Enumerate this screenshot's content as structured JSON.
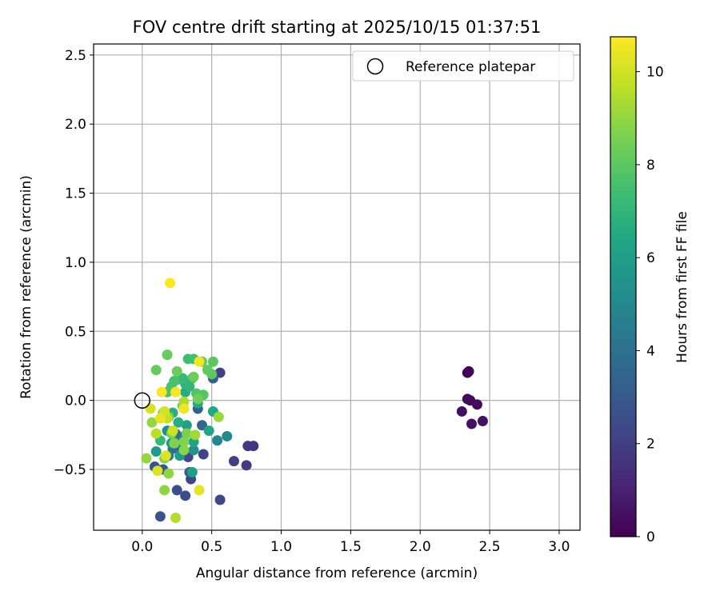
{
  "chart_data": {
    "type": "scatter",
    "title": "FOV centre drift starting at 2025/10/15 01:37:51",
    "xlabel": "Angular distance from reference (arcmin)",
    "ylabel": "Rotation from reference (arcmin)",
    "xlim": [
      -0.35,
      3.15
    ],
    "ylim": [
      -0.94,
      2.58
    ],
    "xticks": [
      0.0,
      0.5,
      1.0,
      1.5,
      2.0,
      2.5,
      3.0
    ],
    "yticks": [
      -0.5,
      0.0,
      0.5,
      1.0,
      1.5,
      2.0,
      2.5
    ],
    "xtick_labels": [
      "0.0",
      "0.5",
      "1.0",
      "1.5",
      "2.0",
      "2.5",
      "3.0"
    ],
    "ytick_labels": [
      "−0.5",
      "0.0",
      "0.5",
      "1.0",
      "1.5",
      "2.0",
      "2.5"
    ],
    "grid": true,
    "legend": {
      "position": "top-right",
      "entries": [
        {
          "label": "Reference platepar",
          "marker": "open-circle"
        }
      ]
    },
    "reference_point": {
      "x": 0.0,
      "y": 0.0
    },
    "colorbar": {
      "label": "Hours from first FF file",
      "colormap": "viridis",
      "range": [
        0,
        10.75
      ],
      "ticks": [
        0,
        2,
        4,
        6,
        8,
        10
      ],
      "tick_labels": [
        "0",
        "2",
        "4",
        "6",
        "8",
        "10"
      ]
    },
    "points": [
      {
        "x": 2.34,
        "y": 0.2,
        "c": 0.0
      },
      {
        "x": 2.35,
        "y": 0.21,
        "c": 0.1
      },
      {
        "x": 2.34,
        "y": 0.01,
        "c": 0.2
      },
      {
        "x": 2.36,
        "y": 0.0,
        "c": 0.3
      },
      {
        "x": 2.41,
        "y": -0.03,
        "c": 0.3
      },
      {
        "x": 2.3,
        "y": -0.08,
        "c": 0.4
      },
      {
        "x": 2.37,
        "y": -0.17,
        "c": 0.5
      },
      {
        "x": 2.45,
        "y": -0.15,
        "c": 0.5
      },
      {
        "x": 0.8,
        "y": -0.33,
        "c": 1.6
      },
      {
        "x": 0.76,
        "y": -0.33,
        "c": 1.7
      },
      {
        "x": 0.75,
        "y": -0.47,
        "c": 1.8
      },
      {
        "x": 0.66,
        "y": -0.44,
        "c": 2.0
      },
      {
        "x": 0.56,
        "y": 0.2,
        "c": 2.0
      },
      {
        "x": 0.44,
        "y": -0.39,
        "c": 2.1
      },
      {
        "x": 0.35,
        "y": -0.57,
        "c": 2.2
      },
      {
        "x": 0.33,
        "y": -0.41,
        "c": 2.3
      },
      {
        "x": 0.56,
        "y": -0.72,
        "c": 2.4
      },
      {
        "x": 0.31,
        "y": -0.69,
        "c": 2.5
      },
      {
        "x": 0.25,
        "y": -0.65,
        "c": 2.6
      },
      {
        "x": 0.13,
        "y": -0.84,
        "c": 2.7
      },
      {
        "x": 0.09,
        "y": -0.48,
        "c": 2.8
      },
      {
        "x": 0.15,
        "y": -0.5,
        "c": 2.9
      },
      {
        "x": 0.28,
        "y": -0.37,
        "c": 3.0
      },
      {
        "x": 0.34,
        "y": -0.52,
        "c": 3.1
      },
      {
        "x": 0.51,
        "y": 0.16,
        "c": 3.3
      },
      {
        "x": 0.4,
        "y": -0.06,
        "c": 3.4
      },
      {
        "x": 0.43,
        "y": -0.18,
        "c": 3.6
      },
      {
        "x": 0.24,
        "y": -0.24,
        "c": 3.7
      },
      {
        "x": 0.22,
        "y": -0.35,
        "c": 3.9
      },
      {
        "x": 0.27,
        "y": -0.3,
        "c": 4.2
      },
      {
        "x": 0.19,
        "y": -0.4,
        "c": 4.4
      },
      {
        "x": 0.3,
        "y": -0.26,
        "c": 4.6
      },
      {
        "x": 0.54,
        "y": -0.29,
        "c": 4.8
      },
      {
        "x": 0.61,
        "y": -0.26,
        "c": 5.0
      },
      {
        "x": 0.18,
        "y": -0.22,
        "c": 5.2
      },
      {
        "x": 0.37,
        "y": -0.36,
        "c": 5.4
      },
      {
        "x": 0.21,
        "y": -0.31,
        "c": 5.6
      },
      {
        "x": 0.1,
        "y": -0.37,
        "c": 5.8
      },
      {
        "x": 0.27,
        "y": -0.4,
        "c": 5.9
      },
      {
        "x": 0.36,
        "y": -0.52,
        "c": 6.0
      },
      {
        "x": 0.32,
        "y": -0.18,
        "c": 6.1
      },
      {
        "x": 0.37,
        "y": -0.3,
        "c": 6.2
      },
      {
        "x": 0.48,
        "y": -0.22,
        "c": 6.3
      },
      {
        "x": 0.51,
        "y": -0.08,
        "c": 6.4
      },
      {
        "x": 0.4,
        "y": -0.02,
        "c": 6.5
      },
      {
        "x": 0.31,
        "y": 0.06,
        "c": 6.6
      },
      {
        "x": 0.26,
        "y": -0.16,
        "c": 6.7
      },
      {
        "x": 0.22,
        "y": -0.09,
        "c": 6.8
      },
      {
        "x": 0.31,
        "y": 0.12,
        "c": 6.9
      },
      {
        "x": 0.34,
        "y": 0.1,
        "c": 7.0
      },
      {
        "x": 0.13,
        "y": -0.29,
        "c": 7.1
      },
      {
        "x": 0.25,
        "y": 0.15,
        "c": 7.1
      },
      {
        "x": 0.29,
        "y": 0.16,
        "c": 7.2
      },
      {
        "x": 0.36,
        "y": 0.16,
        "c": 7.3
      },
      {
        "x": 0.33,
        "y": 0.3,
        "c": 7.4
      },
      {
        "x": 0.37,
        "y": 0.3,
        "c": 7.5
      },
      {
        "x": 0.23,
        "y": 0.14,
        "c": 7.6
      },
      {
        "x": 0.21,
        "y": 0.1,
        "c": 7.6
      },
      {
        "x": 0.18,
        "y": 0.06,
        "c": 7.7
      },
      {
        "x": 0.39,
        "y": 0.05,
        "c": 7.8
      },
      {
        "x": 0.44,
        "y": 0.04,
        "c": 7.9
      },
      {
        "x": 0.5,
        "y": 0.19,
        "c": 8.0
      },
      {
        "x": 0.51,
        "y": 0.28,
        "c": 8.0
      },
      {
        "x": 0.47,
        "y": 0.22,
        "c": 8.1
      },
      {
        "x": 0.43,
        "y": 0.28,
        "c": 8.1
      },
      {
        "x": 0.18,
        "y": 0.33,
        "c": 8.2
      },
      {
        "x": 0.1,
        "y": 0.22,
        "c": 8.2
      },
      {
        "x": 0.25,
        "y": 0.21,
        "c": 8.3
      },
      {
        "x": 0.37,
        "y": 0.17,
        "c": 8.3
      },
      {
        "x": 0.4,
        "y": 0.01,
        "c": 8.4
      },
      {
        "x": 0.29,
        "y": -0.04,
        "c": 8.4
      },
      {
        "x": 0.19,
        "y": -0.12,
        "c": 8.5
      },
      {
        "x": 0.15,
        "y": -0.09,
        "c": 8.5
      },
      {
        "x": 0.21,
        "y": -0.24,
        "c": 8.6
      },
      {
        "x": 0.32,
        "y": -0.24,
        "c": 8.6
      },
      {
        "x": 0.23,
        "y": -0.31,
        "c": 8.7
      },
      {
        "x": 0.3,
        "y": -0.3,
        "c": 8.7
      },
      {
        "x": 0.3,
        "y": -0.36,
        "c": 8.8
      },
      {
        "x": 0.16,
        "y": -0.42,
        "c": 8.8
      },
      {
        "x": 0.19,
        "y": -0.53,
        "c": 8.9
      },
      {
        "x": 0.16,
        "y": -0.65,
        "c": 8.9
      },
      {
        "x": 0.03,
        "y": -0.42,
        "c": 9.0
      },
      {
        "x": 0.07,
        "y": -0.16,
        "c": 9.0
      },
      {
        "x": 0.55,
        "y": -0.12,
        "c": 9.1
      },
      {
        "x": 0.38,
        "y": -0.25,
        "c": 9.2
      },
      {
        "x": 0.3,
        "y": -0.01,
        "c": 9.4
      },
      {
        "x": 0.24,
        "y": -0.85,
        "c": 9.5
      },
      {
        "x": 0.1,
        "y": -0.24,
        "c": 9.6
      },
      {
        "x": 0.18,
        "y": -0.13,
        "c": 9.8
      },
      {
        "x": 0.22,
        "y": -0.22,
        "c": 9.9
      },
      {
        "x": 0.16,
        "y": -0.08,
        "c": 10.0
      },
      {
        "x": 0.06,
        "y": -0.06,
        "c": 10.1
      },
      {
        "x": 0.17,
        "y": -0.4,
        "c": 10.2
      },
      {
        "x": 0.11,
        "y": -0.51,
        "c": 10.2
      },
      {
        "x": 0.41,
        "y": -0.65,
        "c": 10.3
      },
      {
        "x": 0.13,
        "y": -0.13,
        "c": 10.4
      },
      {
        "x": 0.3,
        "y": -0.06,
        "c": 10.5
      },
      {
        "x": 0.24,
        "y": 0.06,
        "c": 10.6
      },
      {
        "x": 0.41,
        "y": 0.28,
        "c": 10.6
      },
      {
        "x": 0.14,
        "y": 0.06,
        "c": 10.7
      },
      {
        "x": 0.2,
        "y": 0.85,
        "c": 10.75
      }
    ]
  }
}
